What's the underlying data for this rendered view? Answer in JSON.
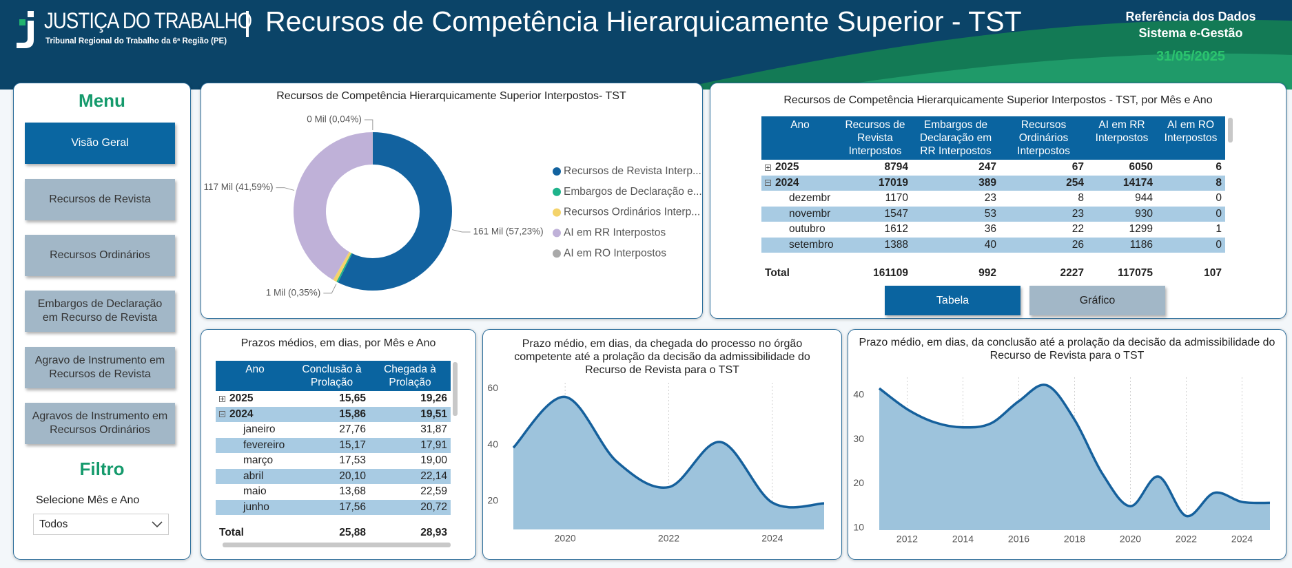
{
  "header": {
    "logo_title": "JUSTIÇA DO TRABALHO",
    "logo_subtitle": "Tribunal Regional do Trabalho da 6ª Região (PE)",
    "title": "Recursos de Competência Hierarquicamente Superior - TST",
    "reference": [
      "Referência dos Dados",
      "Sistema e-Gestão"
    ],
    "date": "31/05/2025"
  },
  "menu": {
    "title": "Menu",
    "buttons": [
      "Visão Geral",
      "Recursos de Revista",
      "Recursos Ordinários",
      "Embargos de Declaração em Recurso de Revista",
      "Agravo de Instrumento em Recursos de Revista",
      "Agravos de Instrumento em Recursos Ordinários"
    ],
    "filter_title": "Filtro",
    "filter_label": "Selecione Mês e Ano",
    "filter_value": "Todos"
  },
  "table_panel": {
    "title": "Recursos de Competência Hierarquicamente Superior Interpostos - TST, por Mês e Ano",
    "columns": [
      "Ano",
      "Recursos de Revista Interpostos",
      "Embargos de Declaração em RR Interpostos",
      "Recursos Ordinários Interpostos",
      "AI em RR Interpostos",
      "AI em RO Interpostos"
    ],
    "rows": [
      [
        "2025",
        8794,
        247,
        67,
        6050,
        6
      ],
      [
        "2024",
        17019,
        389,
        254,
        14174,
        8
      ],
      [
        "dezembr",
        1170,
        23,
        8,
        944,
        0
      ],
      [
        "novembr",
        1547,
        53,
        23,
        930,
        0
      ],
      [
        "outubro",
        1612,
        36,
        22,
        1299,
        1
      ],
      [
        "setembro",
        1388,
        40,
        26,
        1186,
        0
      ]
    ],
    "total": [
      "Total",
      161109,
      992,
      2227,
      117075,
      107
    ],
    "buttons": [
      "Tabela",
      "Gráfico"
    ]
  },
  "prazos_table": {
    "title": "Prazos médios, em dias, por Mês e Ano",
    "columns": [
      "Ano",
      "Conclusão à Prolação",
      "Chegada à Prolação"
    ],
    "rows": [
      [
        "2025",
        "15,65",
        "19,26"
      ],
      [
        "2024",
        "15,86",
        "19,51"
      ],
      [
        "janeiro",
        "27,76",
        "31,87"
      ],
      [
        "fevereiro",
        "15,17",
        "17,91"
      ],
      [
        "março",
        "17,53",
        "19,00"
      ],
      [
        "abril",
        "20,10",
        "22,14"
      ],
      [
        "maio",
        "13,68",
        "22,59"
      ],
      [
        "junho",
        "17,56",
        "20,72"
      ]
    ],
    "total": [
      "Total",
      "25,88",
      "28,93"
    ]
  },
  "chart_data": [
    {
      "type": "pie",
      "donut": true,
      "title": "Recursos de Competência Hierarquicamente Superior Interpostos- TST",
      "categories": [
        "Recursos de Revista Interp...",
        "Embargos de Declaração e...",
        "Recursos Ordinários Interp...",
        "AI em RR Interpostos",
        "AI em RO Interpostos"
      ],
      "values": [
        161109,
        992,
        2227,
        117075,
        107
      ],
      "value_labels": [
        "161 Mil (57,23%)",
        "1 Mil (0,35%)",
        null,
        "117 Mil (41,59%)",
        "0 Mil (0,04%)"
      ],
      "colors": [
        "#12629f",
        "#1fb38b",
        "#f4d36a",
        "#bfb1d8",
        "#a9a9a9"
      ],
      "legend": "right"
    },
    {
      "type": "area",
      "title": "Prazo médio, em dias, da chegada do processo no órgão competente até a prolação da decisão da admissibilidade do Recurso de Revista para o TST",
      "x": [
        2019,
        2020,
        2021,
        2022,
        2023,
        2024,
        2025
      ],
      "values": [
        39,
        57,
        34,
        25,
        41,
        19.51,
        19.26
      ],
      "xlim": [
        2019,
        2025
      ],
      "xticks": [
        2020,
        2022,
        2024
      ],
      "ylim": [
        10,
        62
      ],
      "yticks": [
        20,
        40,
        60
      ],
      "color": "#15609c",
      "fill": "#9dc3dc",
      "grid": true
    },
    {
      "type": "area",
      "title": "Prazo médio, em dias, da conclusão até a prolação da decisão da admissibilidade do Recurso de Revista para o TST",
      "x": [
        2011,
        2012,
        2013,
        2014,
        2015,
        2016,
        2017,
        2018,
        2019,
        2020,
        2021,
        2022,
        2023,
        2024,
        2025
      ],
      "values": [
        41.5,
        36.8,
        33.8,
        32.7,
        33.6,
        38.6,
        42.2,
        34.4,
        22.2,
        14.9,
        21.6,
        12.7,
        17.9,
        15.86,
        15.65
      ],
      "xlim": [
        2011,
        2025
      ],
      "xticks": [
        2012,
        2014,
        2016,
        2018,
        2020,
        2022,
        2024
      ],
      "ylim": [
        9.5,
        44
      ],
      "yticks": [
        10,
        20,
        30,
        40
      ],
      "color": "#15609c",
      "fill": "#9dc3dc",
      "grid": true
    }
  ]
}
